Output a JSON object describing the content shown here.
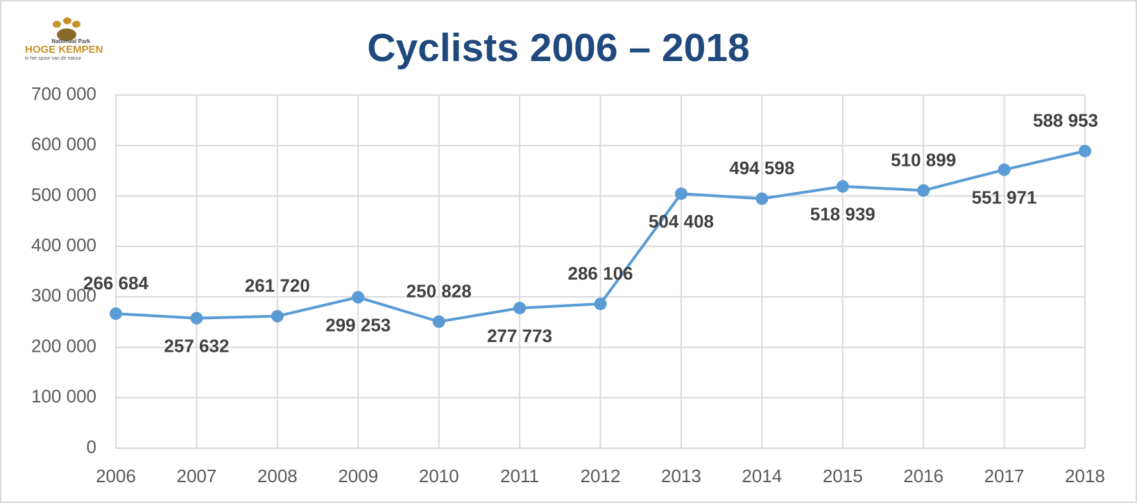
{
  "logo": {
    "top": "Nationaal Park",
    "name": "HOGE KEMPEN",
    "tagline": "in het spoor van de natuur"
  },
  "chart_data": {
    "type": "line",
    "title": "Cyclists 2006 – 2018",
    "categories": [
      "2006",
      "2007",
      "2008",
      "2009",
      "2010",
      "2011",
      "2012",
      "2013",
      "2014",
      "2015",
      "2016",
      "2017",
      "2018"
    ],
    "series": [
      {
        "name": "Cyclists",
        "color": "#5b9bd5",
        "values": [
          266684,
          257632,
          261720,
          299253,
          250828,
          277773,
          286106,
          504408,
          494598,
          518939,
          510899,
          551971,
          588953
        ],
        "value_labels": [
          "266 684",
          "257 632",
          "261 720",
          "299 253",
          "250 828",
          "277 773",
          "286 106",
          "504 408",
          "494 598",
          "518 939",
          "510 899",
          "551 971",
          "588 953"
        ]
      }
    ],
    "ylim": [
      0,
      700000
    ],
    "yticks": [
      0,
      {
        "value": 100000,
        "label": "100 000"
      },
      {
        "value": 200000,
        "label": "200 000"
      },
      {
        "value": 300000,
        "label": "300 000"
      },
      {
        "value": 400000,
        "label": "400 000"
      },
      {
        "value": 500000,
        "label": "500 000"
      },
      {
        "value": 600000,
        "label": "600 000"
      },
      {
        "value": 700000,
        "label": "700 000"
      }
    ],
    "grid": true
  }
}
